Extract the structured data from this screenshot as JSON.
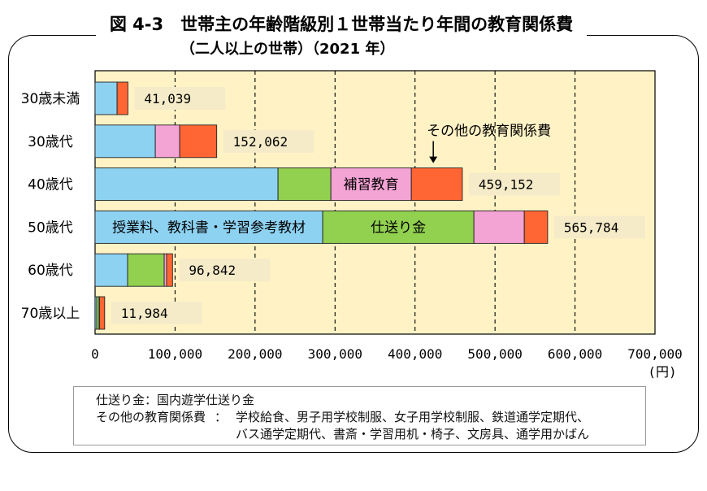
{
  "chart_data": {
    "type": "bar",
    "orientation": "horizontal",
    "stacked": true,
    "title": "図 4-3　世帯主の年齢階級別１世帯当たり年間の教育関係費",
    "subtitle": "（二人以上の世帯）（2021 年）",
    "categories": [
      "30歳未満",
      "30歳代",
      "40歳代",
      "50歳代",
      "60歳代",
      "70歳以上"
    ],
    "series": [
      {
        "name": "授業料、教科書・学習参考教材",
        "color": "#8ED2F2",
        "values": [
          27500,
          75300,
          228700,
          284600,
          40700,
          2000
        ]
      },
      {
        "name": "仕送り金",
        "color": "#92D050",
        "values": [
          0,
          0,
          66100,
          189000,
          45700,
          3000
        ]
      },
      {
        "name": "補習教育",
        "color": "#F4A3D5",
        "values": [
          0,
          30500,
          100600,
          63000,
          3000,
          500
        ]
      },
      {
        "name": "その他の教育関係費",
        "color": "#FF6633",
        "values": [
          13539,
          46262,
          63752,
          29184,
          7442,
          6484
        ]
      }
    ],
    "totals": [
      41039,
      152062,
      459152,
      565784,
      96842,
      11984
    ],
    "total_labels": [
      "41,039",
      "152,062",
      "459,152",
      "565,784",
      "96,842",
      "11,984"
    ],
    "xlim": [
      0,
      700000
    ],
    "xticks": [
      0,
      100000,
      200000,
      300000,
      400000,
      500000,
      600000,
      700000
    ],
    "xtick_labels": [
      "0",
      "100,000",
      "200,000",
      "300,000",
      "400,000",
      "500,000",
      "600,000",
      "700,000"
    ],
    "xunit": "(円)",
    "xlabel": "",
    "ylabel": "",
    "grid": true,
    "segment_labels": [
      {
        "series": 0,
        "category": 3
      },
      {
        "series": 1,
        "category": 3
      },
      {
        "series": 2,
        "category": 2
      }
    ],
    "callout": {
      "series": 3,
      "category": 2
    }
  },
  "colors": {
    "plot_background": "#FFF3C6",
    "label_background": "#F5EBC8",
    "bar_outline": "#222222",
    "frame": "#000000"
  },
  "notes": {
    "remittance": {
      "term": "仕送り金",
      "sep": "：",
      "desc": "国内遊学仕送り金"
    },
    "other": {
      "term": "その他の教育関係費",
      "sep": "：",
      "lines": [
        "学校給食、男子用学校制服、女子用学校制服、鉄道通学定期代、",
        "バス通学定期代、書斎・学習用机・椅子、文房具、通学用かばん"
      ]
    }
  }
}
